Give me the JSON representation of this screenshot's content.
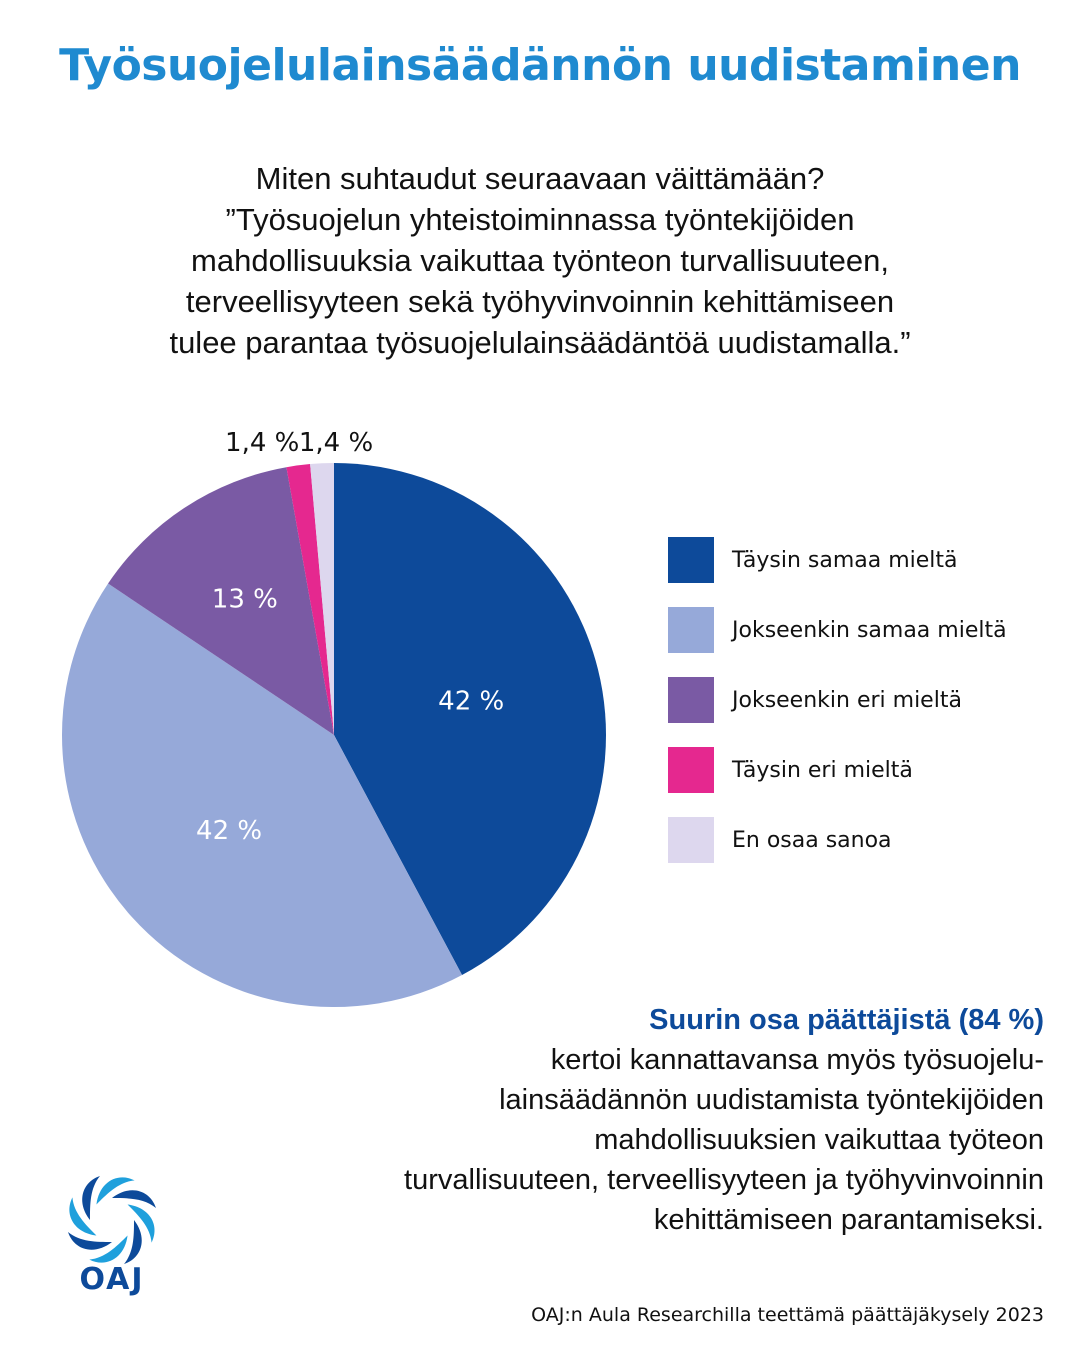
{
  "title": "Työsuojelulainsäädännön uudistaminen",
  "question_lines": [
    "Miten suhtaudut seuraavaan väittämään?",
    "”Työsuojelun yhteistoiminnassa työntekijöiden",
    "mahdollisuuksia vaikuttaa työnteon turvallisuuteen,",
    "terveellisyyteen sekä työhyvinvoinnin kehittämiseen",
    "tulee parantaa työsuojelulainsäädäntöä uudistamalla.”"
  ],
  "chart_data": {
    "type": "pie",
    "slices": [
      {
        "label": "Täysin samaa mieltä",
        "value": 42.2,
        "display": "42 %",
        "color": "#0d4a9a",
        "label_color": "#ffffff",
        "label_inside": true
      },
      {
        "label": "Jokseenkin samaa mieltä",
        "value": 42.2,
        "display": "42 %",
        "color": "#96a9d9",
        "label_color": "#ffffff",
        "label_inside": true
      },
      {
        "label": "Jokseenkin eri mieltä",
        "value": 12.8,
        "display": "13 %",
        "color": "#7a5aa4",
        "label_color": "#ffffff",
        "label_inside": true
      },
      {
        "label": "Täysin eri mieltä",
        "value": 1.4,
        "display": "1,4 %",
        "color": "#e5288f",
        "label_color": "#111111",
        "label_inside": false
      },
      {
        "label": "En osaa sanoa",
        "value": 1.4,
        "display": "1,4 %",
        "color": "#ddd7ee",
        "label_color": "#111111",
        "label_inside": false
      }
    ],
    "start_angle_deg": 0,
    "direction": "clockwise",
    "legend_position": "right"
  },
  "summary": {
    "lead": "Suurin osa päättäjistä (84 %)",
    "lines": [
      "kertoi kannattavansa myös työsuojelu-",
      "lainsäädännön uudistamista työntekijöiden",
      "mahdollisuuksien vaikuttaa työteon",
      "turvallisuuteen, terveellisyyteen ja työhyvinvoinnin",
      "kehittämiseen parantamiseksi."
    ]
  },
  "logo": {
    "text": "OAJ",
    "icon": "oaj-ring-logo",
    "colors": [
      "#0d4a9a",
      "#1fa0dc"
    ]
  },
  "source": "OAJ:n Aula Researchilla teettämä päättäjäkysely 2023"
}
